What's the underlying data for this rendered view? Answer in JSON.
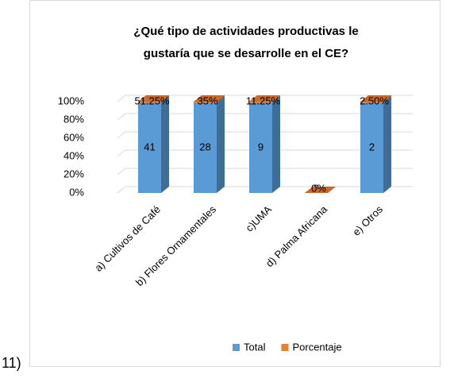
{
  "prefix": "11)",
  "chart_data": {
    "type": "bar3d_percent_stacked",
    "title": [
      "¿Qué tipo de actividades productivas le",
      "gustaría que se desarrolle en el CE?"
    ],
    "categories": [
      "a) Cultivos de Café",
      "b) Flores Ornamentales",
      "c)UMA",
      "d) Palma Africana",
      "e) Otros"
    ],
    "series": [
      {
        "name": "Total",
        "color": "#5b9bd5",
        "values": [
          41,
          28,
          9,
          0,
          2
        ]
      },
      {
        "name": "Porcentaje",
        "color": "#ed7d31",
        "values": [
          0.5125,
          0.35,
          0.1125,
          0,
          0.025
        ],
        "value_labels": [
          "51.25%",
          "35%",
          "11.25%",
          "0%",
          "2.50%"
        ]
      }
    ],
    "ylim": [
      0,
      100
    ],
    "yticks": [
      {
        "value": 0,
        "label": "0%"
      },
      {
        "value": 20,
        "label": "20%"
      },
      {
        "value": 40,
        "label": "40%"
      },
      {
        "value": 60,
        "label": "60%"
      },
      {
        "value": 80,
        "label": "80%"
      },
      {
        "value": 100,
        "label": "100%"
      }
    ],
    "grid": true,
    "legend": "bottom"
  }
}
